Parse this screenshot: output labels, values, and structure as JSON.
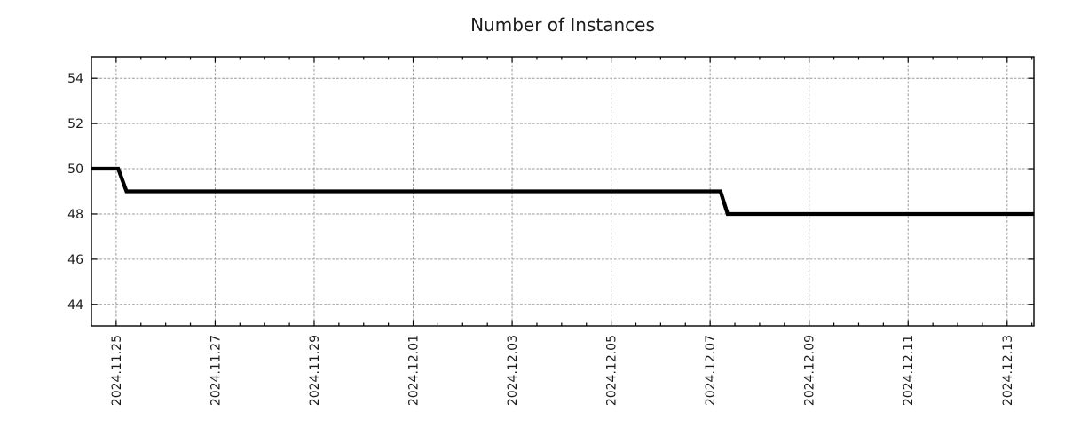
{
  "chart_data": {
    "type": "line",
    "title": "Number of Instances",
    "xlabel": "",
    "ylabel": "",
    "legend": "none",
    "grid": true,
    "line_style": "step",
    "x_axis": {
      "kind": "datetime",
      "min": "2024-11-24T12:00:00",
      "max": "2024-12-13T13:00:00",
      "major_ticks": [
        {
          "label": "2024.11.25",
          "t": "2024-11-25T00:00:00"
        },
        {
          "label": "2024.11.27",
          "t": "2024-11-27T00:00:00"
        },
        {
          "label": "2024.11.29",
          "t": "2024-11-29T00:00:00"
        },
        {
          "label": "2024.12.01",
          "t": "2024-12-01T00:00:00"
        },
        {
          "label": "2024.12.03",
          "t": "2024-12-03T00:00:00"
        },
        {
          "label": "2024.12.05",
          "t": "2024-12-05T00:00:00"
        },
        {
          "label": "2024.12.07",
          "t": "2024-12-07T00:00:00"
        },
        {
          "label": "2024.12.09",
          "t": "2024-12-09T00:00:00"
        },
        {
          "label": "2024.12.11",
          "t": "2024-12-11T00:00:00"
        },
        {
          "label": "2024.12.13",
          "t": "2024-12-13T00:00:00"
        }
      ],
      "minor_tick_hours": 12
    },
    "y_axis": {
      "min": 43.05,
      "max": 54.95,
      "major_ticks": [
        44,
        46,
        48,
        50,
        52,
        54
      ]
    },
    "series": [
      {
        "name": "instances",
        "color": "#000000",
        "line_width": 4.3,
        "points": [
          {
            "t": "2024-11-24T12:00:00",
            "v": 50
          },
          {
            "t": "2024-11-25T01:00:00",
            "v": 50
          },
          {
            "t": "2024-11-25T05:00:00",
            "v": 49
          },
          {
            "t": "2024-12-07T05:00:00",
            "v": 49
          },
          {
            "t": "2024-12-07T08:30:00",
            "v": 48
          },
          {
            "t": "2024-12-13T13:00:00",
            "v": 48
          }
        ]
      }
    ],
    "colors": {
      "line": "#000000",
      "grid": "#9a9a9a",
      "axis": "#000000",
      "text": "#1c1c1c",
      "background": "#ffffff"
    }
  }
}
